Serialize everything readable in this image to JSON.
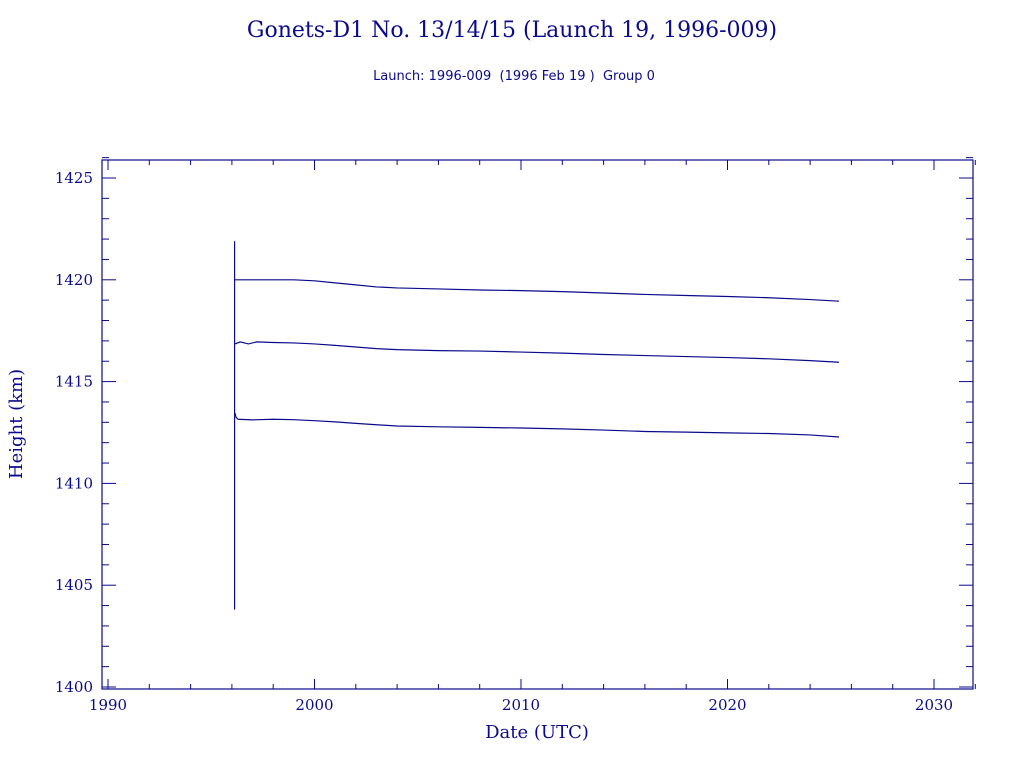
{
  "colors": {
    "ink": "#0a0a8c",
    "background": "#ffffff"
  },
  "chart_data": {
    "type": "line",
    "title": "Gonets-D1 No. 13/14/15 (Launch 19, 1996-009)",
    "subtitle": "Launch: 1996-009  (1996 Feb 19 )  Group 0",
    "xlabel": "Date (UTC)",
    "ylabel": "Height (km)",
    "xlim": [
      1990,
      2032
    ],
    "ylim": [
      1400,
      1426
    ],
    "x_ticks": [
      1990,
      2000,
      2010,
      2020,
      2030
    ],
    "y_ticks": [
      1400,
      1405,
      1410,
      1415,
      1420,
      1425
    ],
    "x_minor_step": 2,
    "y_minor_step": 1,
    "grid": false,
    "legend": "none",
    "launch_spike": {
      "x": 1996.13,
      "y_min": 1403.8,
      "y_max": 1421.9
    },
    "series": [
      {
        "x": [
          1996.15,
          1997,
          1998,
          1999,
          2000,
          2001,
          2002,
          2003,
          2004,
          2006,
          2008,
          2010,
          2012,
          2014,
          2016,
          2018,
          2020,
          2022,
          2024,
          2025.4
        ],
        "y": [
          1420.0,
          1420.0,
          1420.0,
          1420.0,
          1419.95,
          1419.85,
          1419.75,
          1419.65,
          1419.6,
          1419.55,
          1419.5,
          1419.47,
          1419.42,
          1419.35,
          1419.28,
          1419.23,
          1419.18,
          1419.12,
          1419.03,
          1418.95
        ]
      },
      {
        "x": [
          1996.15,
          1996.4,
          1996.8,
          1997.2,
          1998,
          1999,
          2000,
          2001,
          2002,
          2003,
          2004,
          2006,
          2008,
          2010,
          2012,
          2014,
          2016,
          2018,
          2020,
          2022,
          2024,
          2025.4
        ],
        "y": [
          1416.85,
          1416.95,
          1416.85,
          1416.95,
          1416.92,
          1416.9,
          1416.85,
          1416.78,
          1416.7,
          1416.62,
          1416.57,
          1416.52,
          1416.5,
          1416.45,
          1416.4,
          1416.33,
          1416.28,
          1416.23,
          1416.18,
          1416.12,
          1416.03,
          1415.95
        ]
      },
      {
        "x": [
          1996.15,
          1996.2,
          1996.3,
          1997,
          1998,
          1999,
          2000,
          2001,
          2002,
          2003,
          2004,
          2006,
          2008,
          2010,
          2012,
          2014,
          2016,
          2018,
          2020,
          2022,
          2024,
          2025.4
        ],
        "y": [
          1413.45,
          1413.25,
          1413.15,
          1413.12,
          1413.15,
          1413.13,
          1413.08,
          1413.02,
          1412.95,
          1412.88,
          1412.82,
          1412.78,
          1412.75,
          1412.72,
          1412.68,
          1412.62,
          1412.55,
          1412.52,
          1412.48,
          1412.45,
          1412.38,
          1412.28
        ]
      }
    ]
  }
}
